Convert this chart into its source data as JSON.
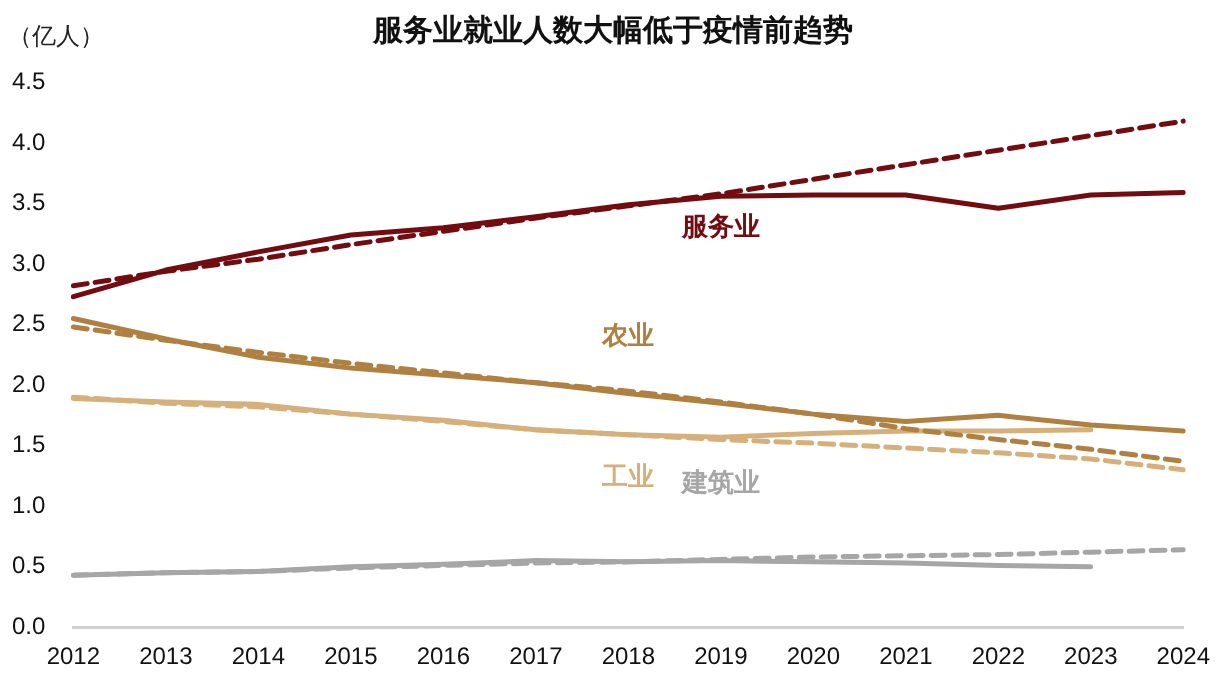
{
  "chart_data": {
    "type": "line",
    "title": "服务业就业人数大幅低于疫情前趋势",
    "ylabel": "（亿人）",
    "categories": [
      "2012",
      "2013",
      "2014",
      "2015",
      "2016",
      "2017",
      "2018",
      "2019",
      "2020",
      "2021",
      "2022",
      "2023",
      "2024"
    ],
    "ylim": [
      0,
      4.5
    ],
    "yticks": [
      {
        "value": 0,
        "label": "0.0"
      },
      {
        "value": 0.5,
        "label": "0.5"
      },
      {
        "value": 1,
        "label": "1.0"
      },
      {
        "value": 1.5,
        "label": "1.5"
      },
      {
        "value": 2,
        "label": "2.0"
      },
      {
        "value": 2.5,
        "label": "2.5"
      },
      {
        "value": 3,
        "label": "3.0"
      },
      {
        "value": 3.5,
        "label": "3.5"
      },
      {
        "value": 4,
        "label": "4.0"
      },
      {
        "value": 4.5,
        "label": "4.5"
      }
    ],
    "grid": false,
    "legend": false,
    "marker": "none",
    "series": [
      {
        "name": "服务业",
        "color": "#720c10",
        "line_style": "solid",
        "values": [
          2.73,
          2.95,
          3.1,
          3.24,
          3.3,
          3.39,
          3.49,
          3.56,
          3.57,
          3.57,
          3.46,
          3.57,
          3.59
        ]
      },
      {
        "color": "#720c10",
        "line_style": "dashed",
        "values": [
          2.82,
          2.94,
          3.04,
          3.16,
          3.27,
          3.38,
          3.48,
          3.58,
          3.7,
          3.82,
          3.94,
          4.06,
          4.18
        ]
      },
      {
        "name": "农业",
        "color": "#b08040",
        "line_style": "solid",
        "values": [
          2.55,
          2.38,
          2.23,
          2.14,
          2.08,
          2.02,
          1.93,
          1.85,
          1.76,
          1.7,
          1.75,
          1.67,
          1.62
        ]
      },
      {
        "color": "#b08040",
        "line_style": "dashed",
        "values": [
          2.48,
          2.37,
          2.27,
          2.18,
          2.1,
          2.02,
          1.95,
          1.86,
          1.76,
          1.64,
          1.55,
          1.47,
          1.37
        ]
      },
      {
        "name": "工业",
        "color": "#d6b07a",
        "line_style": "solid",
        "values": [
          1.89,
          1.86,
          1.84,
          1.76,
          1.71,
          1.63,
          1.59,
          1.57,
          1.6,
          1.62,
          1.62,
          1.63,
          null
        ]
      },
      {
        "color": "#d6b07a",
        "line_style": "dashed",
        "values": [
          1.9,
          1.85,
          1.82,
          1.76,
          1.7,
          1.63,
          1.59,
          1.55,
          1.52,
          1.48,
          1.44,
          1.39,
          1.3
        ]
      },
      {
        "name": "建筑业",
        "color": "#a6a6a6",
        "line_style": "solid",
        "values": [
          0.43,
          0.45,
          0.46,
          0.5,
          0.52,
          0.55,
          0.54,
          0.55,
          0.54,
          0.53,
          0.51,
          0.5,
          null
        ]
      },
      {
        "color": "#a6a6a6",
        "line_style": "dashed",
        "values": [
          0.43,
          0.45,
          0.46,
          0.49,
          0.51,
          0.53,
          0.54,
          0.56,
          0.58,
          0.59,
          0.6,
          0.62,
          0.64
        ]
      }
    ]
  }
}
